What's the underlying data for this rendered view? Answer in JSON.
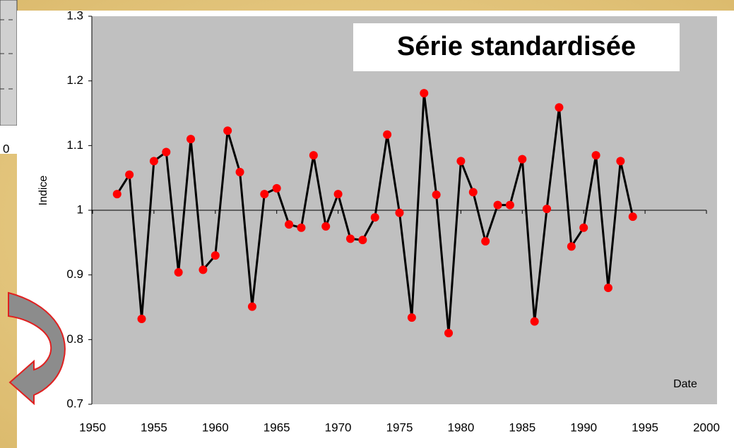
{
  "background_fragment": {
    "label": "0"
  },
  "chart_data": {
    "type": "line",
    "title": "Série standardisée",
    "y_label": "Indice",
    "x_annotation": "Date",
    "x": [
      1952,
      1953,
      1954,
      1955,
      1956,
      1957,
      1958,
      1959,
      1960,
      1961,
      1962,
      1963,
      1964,
      1965,
      1966,
      1967,
      1968,
      1969,
      1970,
      1971,
      1972,
      1973,
      1974,
      1975,
      1976,
      1977,
      1978,
      1979,
      1980,
      1981,
      1982,
      1983,
      1984,
      1985,
      1986,
      1987,
      1988,
      1989,
      1990,
      1991,
      1992,
      1993,
      1994
    ],
    "values": [
      1.025,
      1.055,
      0.832,
      1.076,
      1.09,
      0.904,
      1.11,
      0.908,
      0.93,
      1.123,
      1.059,
      0.851,
      1.025,
      1.034,
      0.978,
      0.973,
      1.085,
      0.975,
      1.025,
      0.956,
      0.954,
      0.989,
      1.117,
      0.996,
      0.834,
      1.181,
      1.024,
      0.81,
      1.076,
      1.028,
      0.952,
      1.008,
      1.008,
      1.079,
      0.828,
      1.002,
      1.159,
      0.944,
      0.973,
      1.085,
      0.88,
      1.076,
      0.99
    ],
    "color": "#000000",
    "marker_color": "#ff0000",
    "plot_background": "#c0c0c0",
    "xlim": [
      1950,
      2000
    ],
    "xticks": [
      1950,
      1955,
      1960,
      1965,
      1970,
      1975,
      1980,
      1985,
      1990,
      1995,
      2000
    ],
    "ylim": [
      0.7,
      1.3
    ],
    "yticks": [
      0.7,
      0.8,
      0.9,
      1,
      1.1,
      1.2,
      1.3
    ],
    "x_axis_crosses": 1,
    "grid": false
  }
}
